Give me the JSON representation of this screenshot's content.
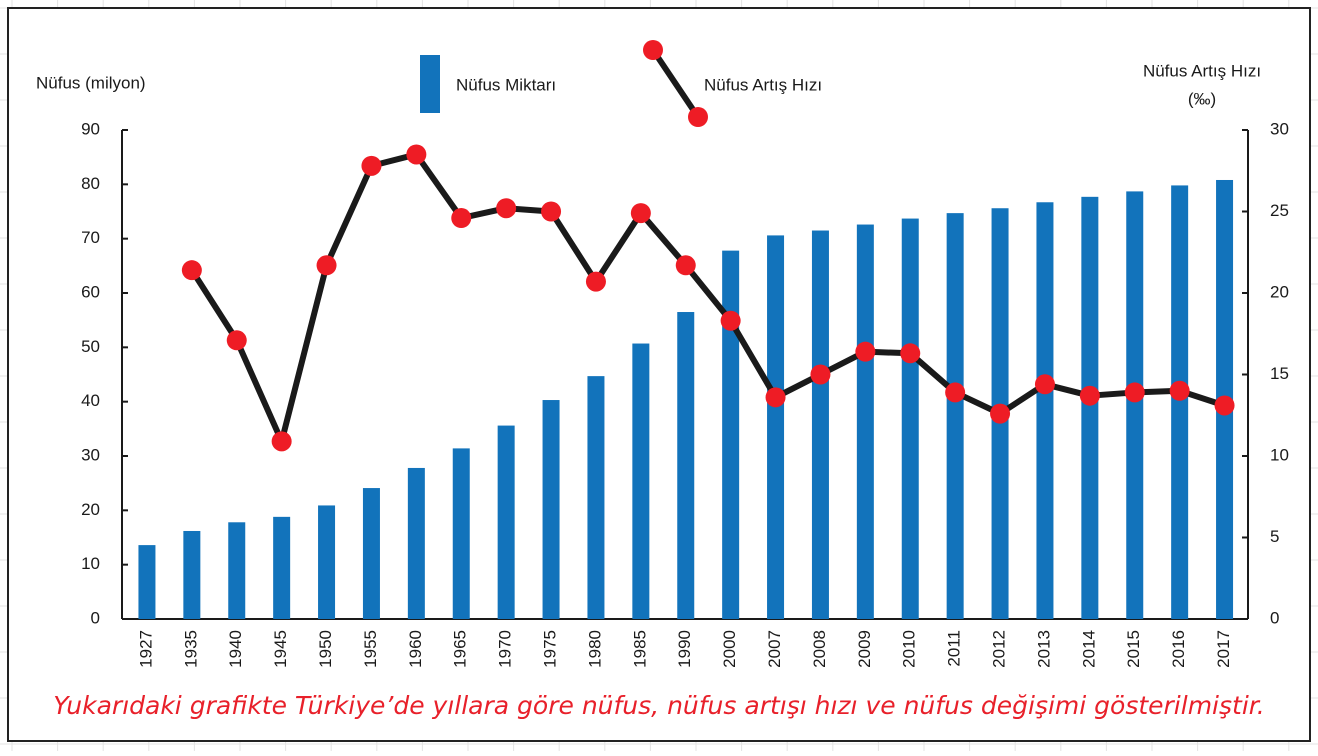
{
  "chart_data": {
    "type": "bar_line",
    "y_label": "Nüfus (milyon)",
    "y2_label": [
      "Nüfus Artış Hızı",
      "(‰)"
    ],
    "caption": "Yukarıdaki grafikte Türkiye’de yıllara göre nüfus, nüfus artışı hızı ve nüfus değişimi gösterilmiştir.",
    "categories": [
      "1927",
      "1935",
      "1940",
      "1945",
      "1950",
      "1955",
      "1960",
      "1965",
      "1970",
      "1975",
      "1980",
      "1985",
      "1990",
      "2000",
      "2007",
      "2008",
      "2009",
      "2010",
      "2011",
      "2012",
      "2013",
      "2014",
      "2015",
      "2016",
      "2017"
    ],
    "series": [
      {
        "name": "Nüfus Miktarı",
        "color": "#1273bb",
        "type": "bar",
        "values": [
          13.6,
          16.2,
          17.8,
          18.8,
          20.9,
          24.1,
          27.8,
          31.4,
          35.6,
          40.3,
          44.7,
          50.7,
          56.5,
          67.8,
          70.6,
          71.5,
          72.6,
          73.7,
          74.7,
          75.6,
          76.7,
          77.7,
          78.7,
          79.8,
          80.8
        ]
      },
      {
        "name": "Nüfus Artış Hızı",
        "color": "#1a1a1a",
        "marker_color": "#ee1c25",
        "type": "line",
        "axis": "y2",
        "values": [
          null,
          21.4,
          17.1,
          10.9,
          21.7,
          27.8,
          28.5,
          24.6,
          25.2,
          25.0,
          20.7,
          24.9,
          21.7,
          18.3,
          13.6,
          15.0,
          16.4,
          16.3,
          13.9,
          12.6,
          14.4,
          13.7,
          13.9,
          14.0,
          13.1
        ]
      }
    ],
    "ylim": [
      0,
      90
    ],
    "yticks": [
      0,
      10,
      20,
      30,
      40,
      50,
      60,
      70,
      80,
      90
    ],
    "y2lim": [
      0,
      30
    ],
    "y2ticks": [
      0,
      5,
      10,
      15,
      20,
      25,
      30
    ]
  }
}
